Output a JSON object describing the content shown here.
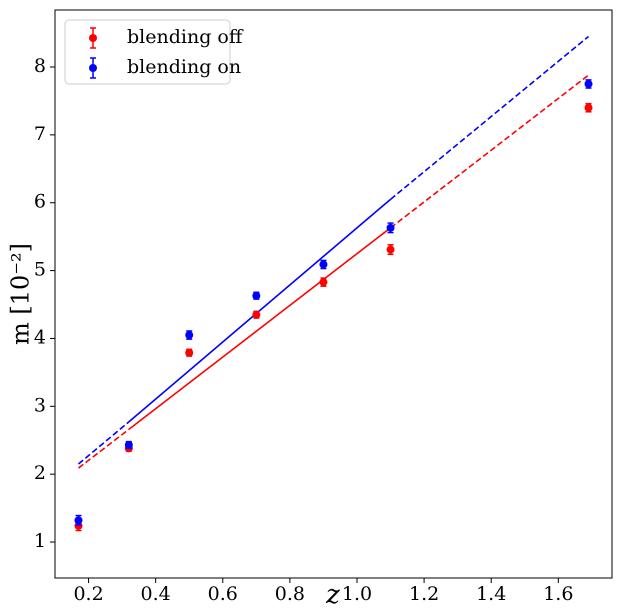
{
  "chart_data": {
    "type": "errorbar",
    "x_label": "z",
    "y_label": "m [10⁻²]",
    "xlim": [
      0.1,
      1.76
    ],
    "ylim": [
      0.47,
      8.84
    ],
    "xticks": [
      0.2,
      0.4,
      0.6,
      0.8,
      {
        "value": 1.0,
        "label": "1.0"
      },
      1.2,
      1.4,
      1.6
    ],
    "yticks": [
      1,
      2,
      3,
      4,
      5,
      6,
      7,
      8
    ],
    "legend": "upper-left",
    "series": [
      {
        "name": "blending off",
        "color": "#ff0000",
        "x": [
          0.17,
          0.32,
          0.5,
          0.7,
          0.9,
          1.1,
          1.69
        ],
        "values": [
          1.24,
          2.38,
          3.79,
          4.35,
          4.83,
          5.31,
          7.4
        ],
        "errors": [
          0.07,
          0.04,
          0.05,
          0.05,
          0.06,
          0.07,
          0.06
        ]
      },
      {
        "name": "blending on",
        "color": "#0000ff",
        "x": [
          0.17,
          0.32,
          0.5,
          0.7,
          0.9,
          1.1,
          1.69
        ],
        "values": [
          1.32,
          2.43,
          4.05,
          4.63,
          5.09,
          5.63,
          7.75
        ],
        "errors": [
          0.07,
          0.05,
          0.06,
          0.05,
          0.06,
          0.07,
          0.06
        ]
      }
    ],
    "fit_lines": [
      {
        "color": "#ff0000",
        "x": [
          0.17,
          0.32,
          1.1,
          1.69
        ],
        "values": [
          2.09,
          2.66,
          5.63,
          7.88
        ],
        "linestyles": [
          "dashed",
          "solid",
          "dashed"
        ]
      },
      {
        "color": "#0000ff",
        "x": [
          0.17,
          0.32,
          1.1,
          1.69
        ],
        "values": [
          2.15,
          2.77,
          6.05,
          8.45
        ],
        "linestyles": [
          "dashed",
          "solid",
          "dashed"
        ]
      }
    ]
  }
}
